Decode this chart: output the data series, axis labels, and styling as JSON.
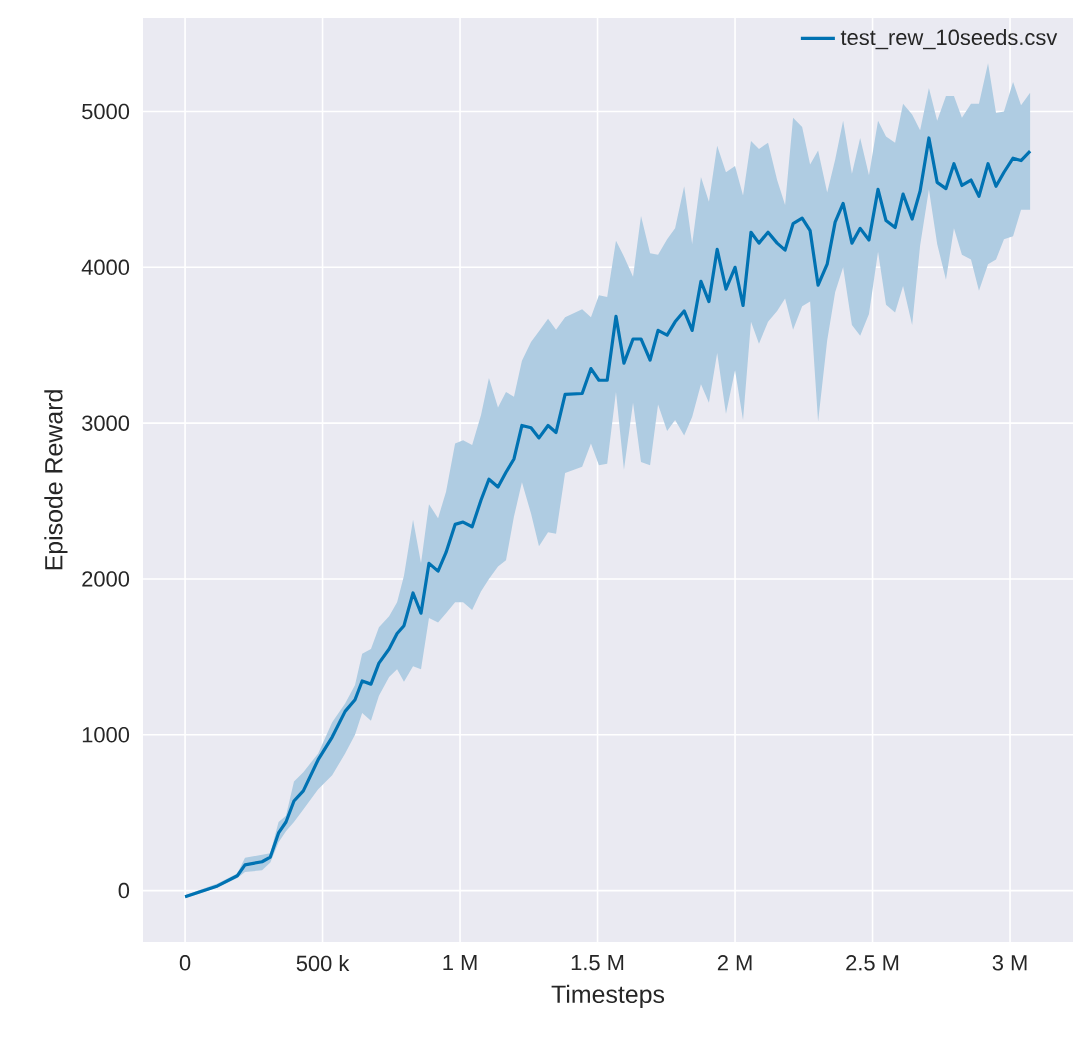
{
  "chart_data": {
    "type": "line",
    "xlabel": "Timesteps",
    "ylabel": "Episode Reward",
    "xlim": [
      -153000,
      3229000
    ],
    "ylim": [
      -330,
      5600
    ],
    "xticks": [
      0,
      {
        "value": 500000,
        "label": "500 k"
      },
      {
        "value": 1000000,
        "label": "1 M"
      },
      {
        "value": 1500000,
        "label": "1.5 M"
      },
      {
        "value": 2000000,
        "label": "2 M"
      },
      {
        "value": 2500000,
        "label": "2.5 M"
      },
      {
        "value": 3000000,
        "label": "3 M"
      }
    ],
    "yticks": [
      0,
      1000,
      2000,
      3000,
      4000,
      5000
    ],
    "grid": true,
    "legend": "top right",
    "series": [
      {
        "name": "test_rew_10seeds.csv",
        "color": "#0072b2",
        "x": [
          0,
          118000,
          190000,
          218000,
          280000,
          310000,
          340000,
          367000,
          396000,
          430000,
          484000,
          535000,
          582000,
          618000,
          644000,
          676000,
          705000,
          742000,
          771000,
          796000,
          829000,
          858000,
          887000,
          920000,
          949000,
          982000,
          1011000,
          1044000,
          1076000,
          1105000,
          1138000,
          1167000,
          1196000,
          1225000,
          1258000,
          1287000,
          1320000,
          1349000,
          1382000,
          1444000,
          1476000,
          1505000,
          1535000,
          1567000,
          1596000,
          1629000,
          1658000,
          1691000,
          1720000,
          1753000,
          1782000,
          1815000,
          1844000,
          1876000,
          1905000,
          1935000,
          1967000,
          2000000,
          2029000,
          2058000,
          2087000,
          2120000,
          2153000,
          2182000,
          2211000,
          2244000,
          2273000,
          2302000,
          2335000,
          2364000,
          2393000,
          2425000,
          2455000,
          2487000,
          2520000,
          2549000,
          2582000,
          2611000,
          2644000,
          2673000,
          2705000,
          2735000,
          2767000,
          2796000,
          2825000,
          2858000,
          2887000,
          2920000,
          2949000,
          2978000,
          3011000,
          3040000,
          3073000
        ],
        "values": [
          -40,
          30,
          95,
          165,
          185,
          215,
          370,
          440,
          575,
          640,
          840,
          985,
          1150,
          1225,
          1345,
          1325,
          1460,
          1550,
          1650,
          1700,
          1910,
          1780,
          2100,
          2050,
          2170,
          2350,
          2365,
          2335,
          2505,
          2640,
          2590,
          2685,
          2770,
          2985,
          2970,
          2905,
          2985,
          2940,
          3185,
          3190,
          3350,
          3275,
          3275,
          3685,
          3385,
          3540,
          3540,
          3405,
          3595,
          3565,
          3650,
          3720,
          3595,
          3910,
          3780,
          4115,
          3860,
          4000,
          3755,
          4225,
          4155,
          4225,
          4155,
          4110,
          4280,
          4315,
          4235,
          3885,
          4020,
          4290,
          4410,
          4155,
          4250,
          4175,
          4500,
          4300,
          4255,
          4470,
          4310,
          4490,
          4830,
          4545,
          4505,
          4665,
          4525,
          4560,
          4455,
          4665,
          4520,
          4610,
          4700,
          4685,
          4745
        ],
        "lower": [
          -50,
          20,
          80,
          120,
          130,
          180,
          310,
          380,
          440,
          520,
          650,
          740,
          880,
          1000,
          1140,
          1090,
          1250,
          1370,
          1420,
          1340,
          1440,
          1420,
          1750,
          1720,
          1780,
          1850,
          1850,
          1800,
          1920,
          2000,
          2080,
          2120,
          2400,
          2620,
          2420,
          2210,
          2300,
          2290,
          2680,
          2720,
          2870,
          2730,
          2740,
          3200,
          2700,
          3130,
          2750,
          2730,
          3120,
          2950,
          3020,
          2920,
          3040,
          3250,
          3130,
          3450,
          3060,
          3340,
          3020,
          3650,
          3510,
          3650,
          3720,
          3800,
          3600,
          3750,
          3780,
          3010,
          3530,
          3840,
          4000,
          3630,
          3560,
          3700,
          4100,
          3760,
          3710,
          3880,
          3630,
          4140,
          4500,
          4150,
          3920,
          4250,
          4080,
          4050,
          3850,
          4020,
          4050,
          4180,
          4200,
          4370,
          4370
        ],
        "upper": [
          -30,
          45,
          110,
          210,
          230,
          240,
          440,
          480,
          700,
          760,
          880,
          1080,
          1200,
          1320,
          1520,
          1550,
          1690,
          1760,
          1850,
          2020,
          2380,
          2100,
          2480,
          2390,
          2560,
          2870,
          2890,
          2860,
          3050,
          3290,
          3100,
          3200,
          3170,
          3400,
          3520,
          3590,
          3670,
          3600,
          3680,
          3730,
          3680,
          3820,
          3810,
          4170,
          4070,
          3940,
          4330,
          4090,
          4080,
          4180,
          4250,
          4520,
          4150,
          4580,
          4420,
          4780,
          4610,
          4650,
          4460,
          4810,
          4760,
          4800,
          4560,
          4400,
          4960,
          4900,
          4660,
          4750,
          4480,
          4690,
          4940,
          4600,
          4830,
          4590,
          4940,
          4840,
          4800,
          5050,
          4980,
          4880,
          5150,
          4940,
          5100,
          5100,
          4960,
          5050,
          5050,
          5310,
          4990,
          5000,
          5190,
          5040,
          5120
        ]
      }
    ]
  }
}
